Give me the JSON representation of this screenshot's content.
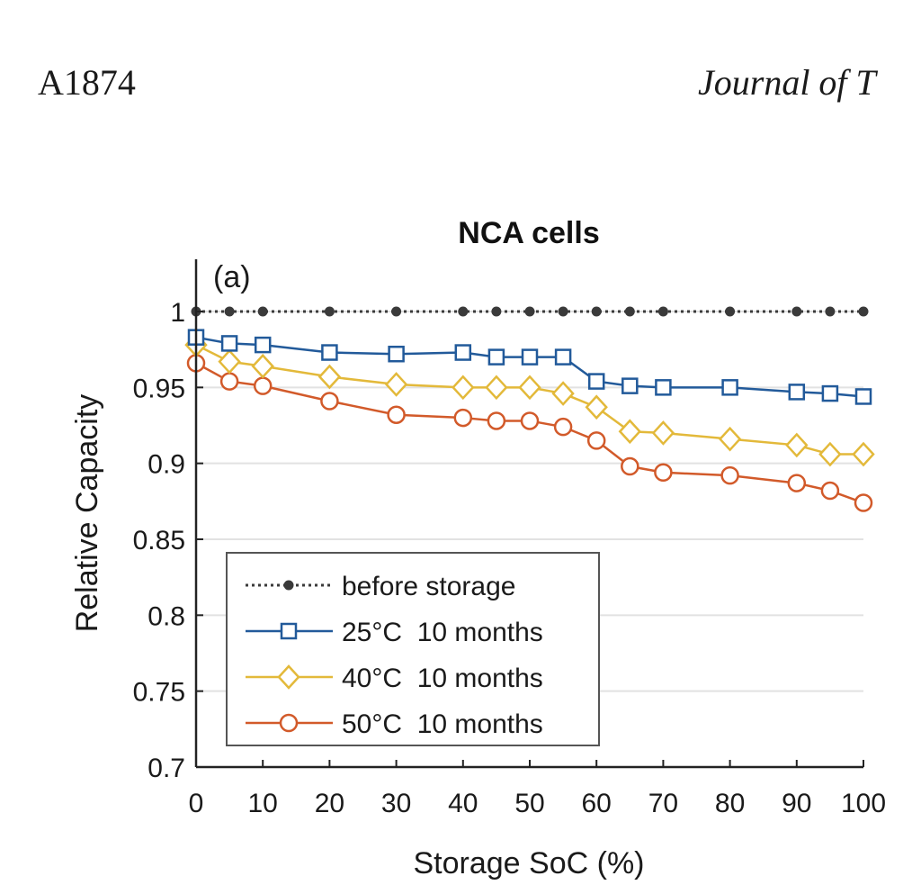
{
  "header": {
    "page_number": "A1874",
    "journal": "Journal of T"
  },
  "chart_data": {
    "type": "line",
    "title": "NCA cells",
    "panel_label": "(a)",
    "xlabel": "Storage SoC (%)",
    "ylabel": "Relative Capacity",
    "xlim": [
      0,
      100
    ],
    "ylim": [
      0.7,
      1.03
    ],
    "xticks": [
      0,
      10,
      20,
      30,
      40,
      50,
      60,
      70,
      80,
      90,
      100
    ],
    "yticks": [
      0.7,
      0.75,
      0.8,
      0.85,
      0.9,
      0.95,
      1
    ],
    "ytick_labels": [
      "0.7",
      "0.75",
      "0.8",
      "0.85",
      "0.9",
      "0.95",
      "1"
    ],
    "grid": "horizontal",
    "legend_position": "bottom-left",
    "x": [
      0,
      5,
      10,
      20,
      30,
      40,
      45,
      50,
      55,
      60,
      65,
      70,
      80,
      90,
      95,
      100
    ],
    "series": [
      {
        "name": "before storage",
        "color": "#3a3a3a",
        "marker": "dot",
        "line": "dotted",
        "values": [
          1,
          1,
          1,
          1,
          1,
          1,
          1,
          1,
          1,
          1,
          1,
          1,
          1,
          1,
          1,
          1
        ]
      },
      {
        "name": "25°C  10 months",
        "color": "#225a9a",
        "marker": "square",
        "line": "solid",
        "values": [
          0.983,
          0.979,
          0.978,
          0.973,
          0.972,
          0.973,
          0.97,
          0.97,
          0.97,
          0.954,
          0.951,
          0.95,
          0.95,
          0.947,
          0.946,
          0.944
        ]
      },
      {
        "name": "40°C  10 months",
        "color": "#e3b93a",
        "marker": "diamond",
        "line": "solid",
        "values": [
          0.978,
          0.967,
          0.964,
          0.957,
          0.952,
          0.95,
          0.95,
          0.95,
          0.946,
          0.937,
          0.921,
          0.92,
          0.916,
          0.912,
          0.906,
          0.906
        ]
      },
      {
        "name": "50°C  10 months",
        "color": "#d25a2a",
        "marker": "circle",
        "line": "solid",
        "values": [
          0.966,
          0.954,
          0.951,
          0.941,
          0.932,
          0.93,
          0.928,
          0.928,
          0.924,
          0.915,
          0.898,
          0.894,
          0.892,
          0.887,
          0.882,
          0.874
        ]
      }
    ]
  }
}
